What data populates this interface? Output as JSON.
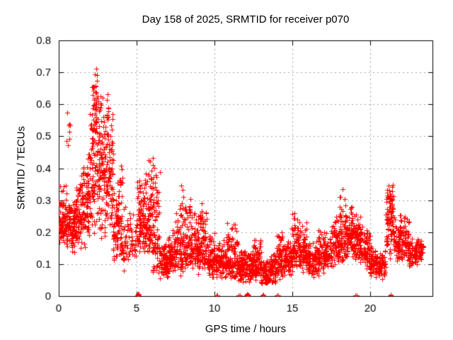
{
  "chart_data": {
    "type": "scatter",
    "title": "Day 158 of 2025, SRMTID for receiver p070",
    "xlabel": "GPS time / hours",
    "ylabel": "SRMTID / TECUs",
    "xlim": [
      0,
      24
    ],
    "ylim": [
      0,
      0.8
    ],
    "xticks": [
      0,
      5,
      10,
      15,
      20
    ],
    "yticks": [
      0,
      0.1,
      0.2,
      0.3,
      0.4,
      0.5,
      0.6,
      0.7,
      0.8
    ],
    "grid": true,
    "legend": "none",
    "marker": "plus",
    "colors": {
      "marker": "#ff0000",
      "grid": "#a3a3a3",
      "frame": "#000000",
      "background": "#ffffff",
      "text": "#000000"
    },
    "seed": 158,
    "bins_format": [
      "t_start",
      "t_end",
      "count",
      "min",
      "mode",
      "max"
    ],
    "density_bins": [
      [
        0.0,
        0.5,
        85,
        0.15,
        0.2,
        0.36
      ],
      [
        0.5,
        1.0,
        85,
        0.13,
        0.21,
        0.33
      ],
      [
        1.0,
        1.5,
        85,
        0.13,
        0.24,
        0.38
      ],
      [
        1.5,
        2.0,
        90,
        0.15,
        0.29,
        0.46
      ],
      [
        2.0,
        2.5,
        95,
        0.18,
        0.4,
        0.74
      ],
      [
        2.5,
        3.0,
        95,
        0.16,
        0.37,
        0.62
      ],
      [
        3.0,
        3.5,
        90,
        0.18,
        0.34,
        0.65
      ],
      [
        3.5,
        4.0,
        80,
        0.08,
        0.18,
        0.42
      ],
      [
        4.0,
        4.5,
        45,
        0.07,
        0.14,
        0.3
      ],
      [
        4.5,
        5.0,
        35,
        0.1,
        0.16,
        0.28
      ],
      [
        5.0,
        5.5,
        75,
        0.13,
        0.2,
        0.38
      ],
      [
        5.5,
        6.0,
        80,
        0.12,
        0.2,
        0.44
      ],
      [
        6.0,
        6.5,
        70,
        0.05,
        0.13,
        0.41
      ],
      [
        6.5,
        7.0,
        70,
        0.04,
        0.09,
        0.18
      ],
      [
        7.0,
        7.5,
        70,
        0.05,
        0.1,
        0.22
      ],
      [
        7.5,
        8.0,
        70,
        0.06,
        0.11,
        0.3
      ],
      [
        8.0,
        8.5,
        70,
        0.06,
        0.12,
        0.33
      ],
      [
        8.5,
        9.0,
        70,
        0.06,
        0.12,
        0.3
      ],
      [
        9.0,
        9.5,
        75,
        0.07,
        0.13,
        0.3
      ],
      [
        9.5,
        10.0,
        70,
        0.05,
        0.11,
        0.2
      ],
      [
        10.0,
        10.5,
        70,
        0.05,
        0.1,
        0.18
      ],
      [
        10.5,
        11.0,
        70,
        0.05,
        0.1,
        0.2
      ],
      [
        11.0,
        11.5,
        70,
        0.04,
        0.09,
        0.24
      ],
      [
        11.5,
        12.0,
        70,
        0.04,
        0.08,
        0.16
      ],
      [
        12.0,
        12.5,
        70,
        0.04,
        0.08,
        0.16
      ],
      [
        12.5,
        13.0,
        70,
        0.05,
        0.09,
        0.19
      ],
      [
        13.0,
        13.5,
        70,
        0.03,
        0.06,
        0.12
      ],
      [
        13.5,
        14.0,
        70,
        0.03,
        0.07,
        0.14
      ],
      [
        14.0,
        14.5,
        70,
        0.05,
        0.1,
        0.2
      ],
      [
        14.5,
        15.0,
        70,
        0.06,
        0.11,
        0.18
      ],
      [
        15.0,
        15.5,
        70,
        0.08,
        0.13,
        0.25
      ],
      [
        15.5,
        16.0,
        70,
        0.07,
        0.12,
        0.24
      ],
      [
        16.0,
        16.5,
        65,
        0.05,
        0.1,
        0.18
      ],
      [
        16.5,
        17.0,
        65,
        0.06,
        0.11,
        0.21
      ],
      [
        17.0,
        17.5,
        65,
        0.08,
        0.12,
        0.2
      ],
      [
        17.5,
        18.0,
        70,
        0.09,
        0.13,
        0.26
      ],
      [
        18.0,
        18.5,
        75,
        0.1,
        0.16,
        0.33
      ],
      [
        18.5,
        19.0,
        75,
        0.11,
        0.18,
        0.28
      ],
      [
        19.0,
        19.5,
        75,
        0.1,
        0.18,
        0.27
      ],
      [
        19.5,
        20.0,
        70,
        0.08,
        0.13,
        0.22
      ],
      [
        20.0,
        20.5,
        60,
        0.05,
        0.1,
        0.16
      ],
      [
        20.5,
        21.0,
        60,
        0.05,
        0.09,
        0.15
      ],
      [
        21.0,
        21.5,
        70,
        0.1,
        0.24,
        0.37
      ],
      [
        21.5,
        22.0,
        65,
        0.1,
        0.16,
        0.28
      ],
      [
        22.0,
        22.5,
        60,
        0.1,
        0.15,
        0.25
      ],
      [
        22.5,
        23.0,
        60,
        0.09,
        0.13,
        0.18
      ],
      [
        23.0,
        23.4,
        45,
        0.1,
        0.14,
        0.18
      ]
    ],
    "spike_format": [
      "t_center",
      "t_halfwidth",
      "count",
      "min",
      "max"
    ],
    "spikes": [
      [
        0.62,
        0.12,
        8,
        0.46,
        0.58
      ],
      [
        2.28,
        0.08,
        6,
        0.55,
        0.7
      ],
      [
        2.42,
        0.06,
        5,
        0.63,
        0.755
      ],
      [
        2.6,
        0.3,
        16,
        0.48,
        0.64
      ],
      [
        3.1,
        0.12,
        7,
        0.52,
        0.65
      ],
      [
        4.05,
        0.08,
        9,
        0.18,
        0.42
      ],
      [
        5.2,
        0.1,
        6,
        0.26,
        0.385
      ],
      [
        5.85,
        0.2,
        10,
        0.28,
        0.44
      ],
      [
        6.2,
        0.12,
        8,
        0.18,
        0.41
      ],
      [
        7.95,
        0.12,
        8,
        0.16,
        0.36
      ],
      [
        8.3,
        0.1,
        5,
        0.15,
        0.28
      ],
      [
        9.25,
        0.1,
        6,
        0.15,
        0.32
      ],
      [
        10.9,
        0.08,
        4,
        0.13,
        0.23
      ],
      [
        12.85,
        0.1,
        4,
        0.11,
        0.18
      ],
      [
        14.2,
        0.15,
        6,
        0.11,
        0.21
      ],
      [
        15.15,
        0.2,
        8,
        0.13,
        0.27
      ],
      [
        16.7,
        0.15,
        5,
        0.12,
        0.22
      ],
      [
        18.15,
        0.1,
        7,
        0.2,
        0.35
      ],
      [
        18.85,
        0.25,
        10,
        0.16,
        0.28
      ],
      [
        21.35,
        0.15,
        14,
        0.26,
        0.37
      ],
      [
        22.1,
        0.15,
        6,
        0.15,
        0.27
      ]
    ],
    "axis_points": [
      [
        5.06,
        0.002
      ],
      [
        5.1,
        0.005
      ],
      [
        5.13,
        0.002
      ],
      [
        5.09,
        0.007
      ],
      [
        5.12,
        0.006
      ],
      [
        10.12,
        0.003
      ],
      [
        10.2,
        0.002
      ],
      [
        11.55,
        0.003
      ],
      [
        11.63,
        0.002
      ],
      [
        12.05,
        0.002
      ],
      [
        12.09,
        0.006
      ],
      [
        12.13,
        0.002
      ],
      [
        12.08,
        0.004
      ],
      [
        12.16,
        0.005
      ],
      [
        13.1,
        0.003
      ],
      [
        13.13,
        0.005
      ],
      [
        14.0,
        0.002
      ],
      [
        14.1,
        0.003
      ],
      [
        19.05,
        0.003
      ],
      [
        19.12,
        0.002
      ],
      [
        21.3,
        0.004
      ],
      [
        21.33,
        0.002
      ]
    ]
  }
}
